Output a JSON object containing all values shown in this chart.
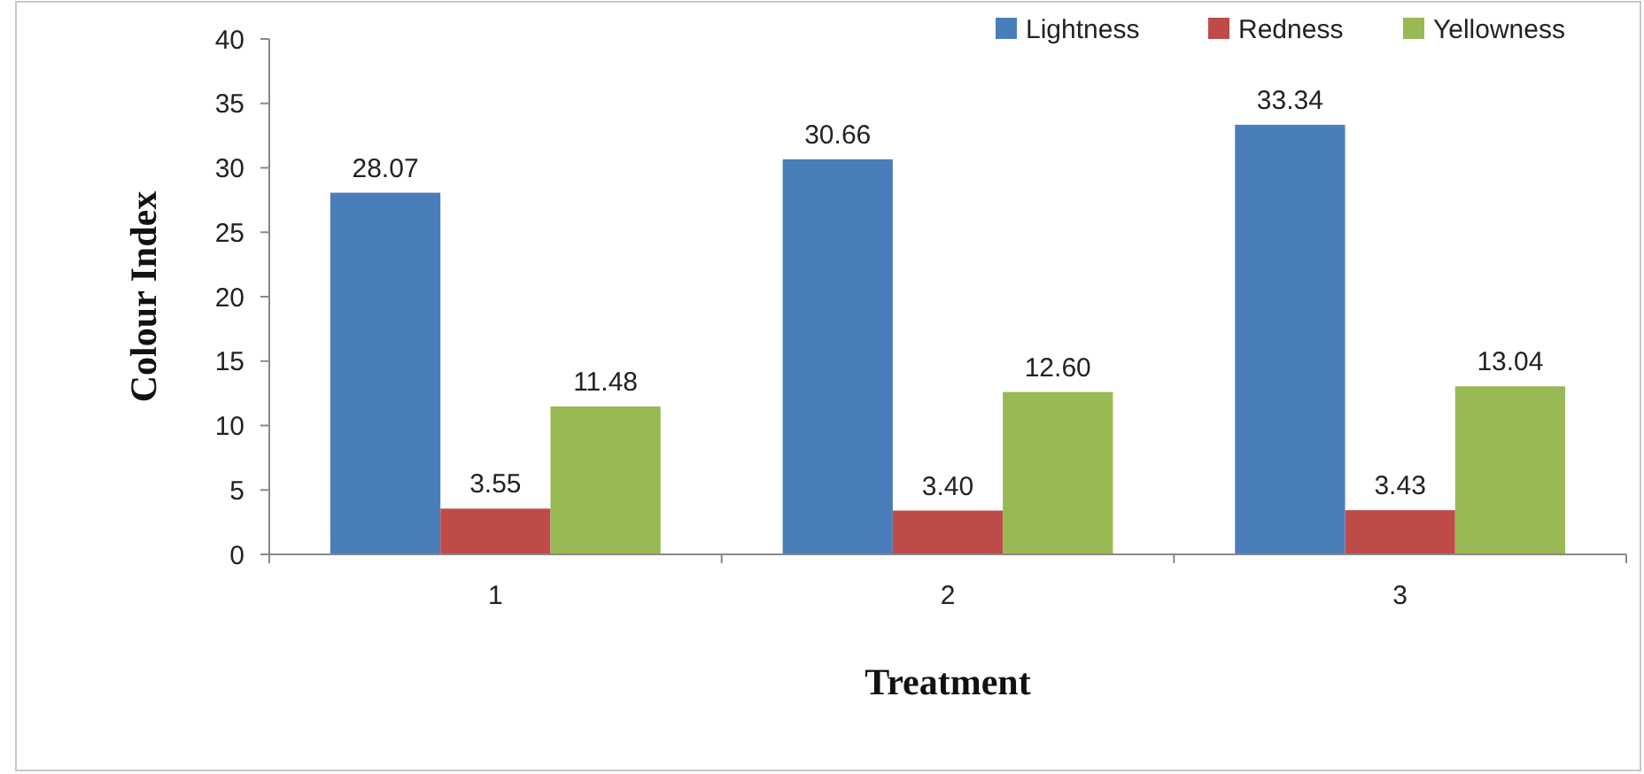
{
  "chart_data": {
    "type": "bar",
    "xlabel": "Treatment",
    "ylabel": "Colour Index",
    "categories": [
      "1",
      "2",
      "3"
    ],
    "series": [
      {
        "name": "Lightness",
        "color": "#4a7ebb",
        "values": [
          28.07,
          30.66,
          33.34
        ]
      },
      {
        "name": "Redness",
        "color": "#be4b48",
        "values": [
          3.55,
          3.4,
          3.43
        ]
      },
      {
        "name": "Yellowness",
        "color": "#98b954",
        "values": [
          11.48,
          12.6,
          13.04
        ]
      }
    ],
    "value_labels": [
      [
        "28.07",
        "30.66",
        "33.34"
      ],
      [
        "3.55",
        "3.40",
        "3.43"
      ],
      [
        "11.48",
        "12.60",
        "13.04"
      ]
    ],
    "ylim": [
      0,
      40
    ],
    "yticks": [
      0,
      5,
      10,
      15,
      20,
      25,
      30,
      35,
      40
    ],
    "grid": false,
    "legend": "top right"
  }
}
